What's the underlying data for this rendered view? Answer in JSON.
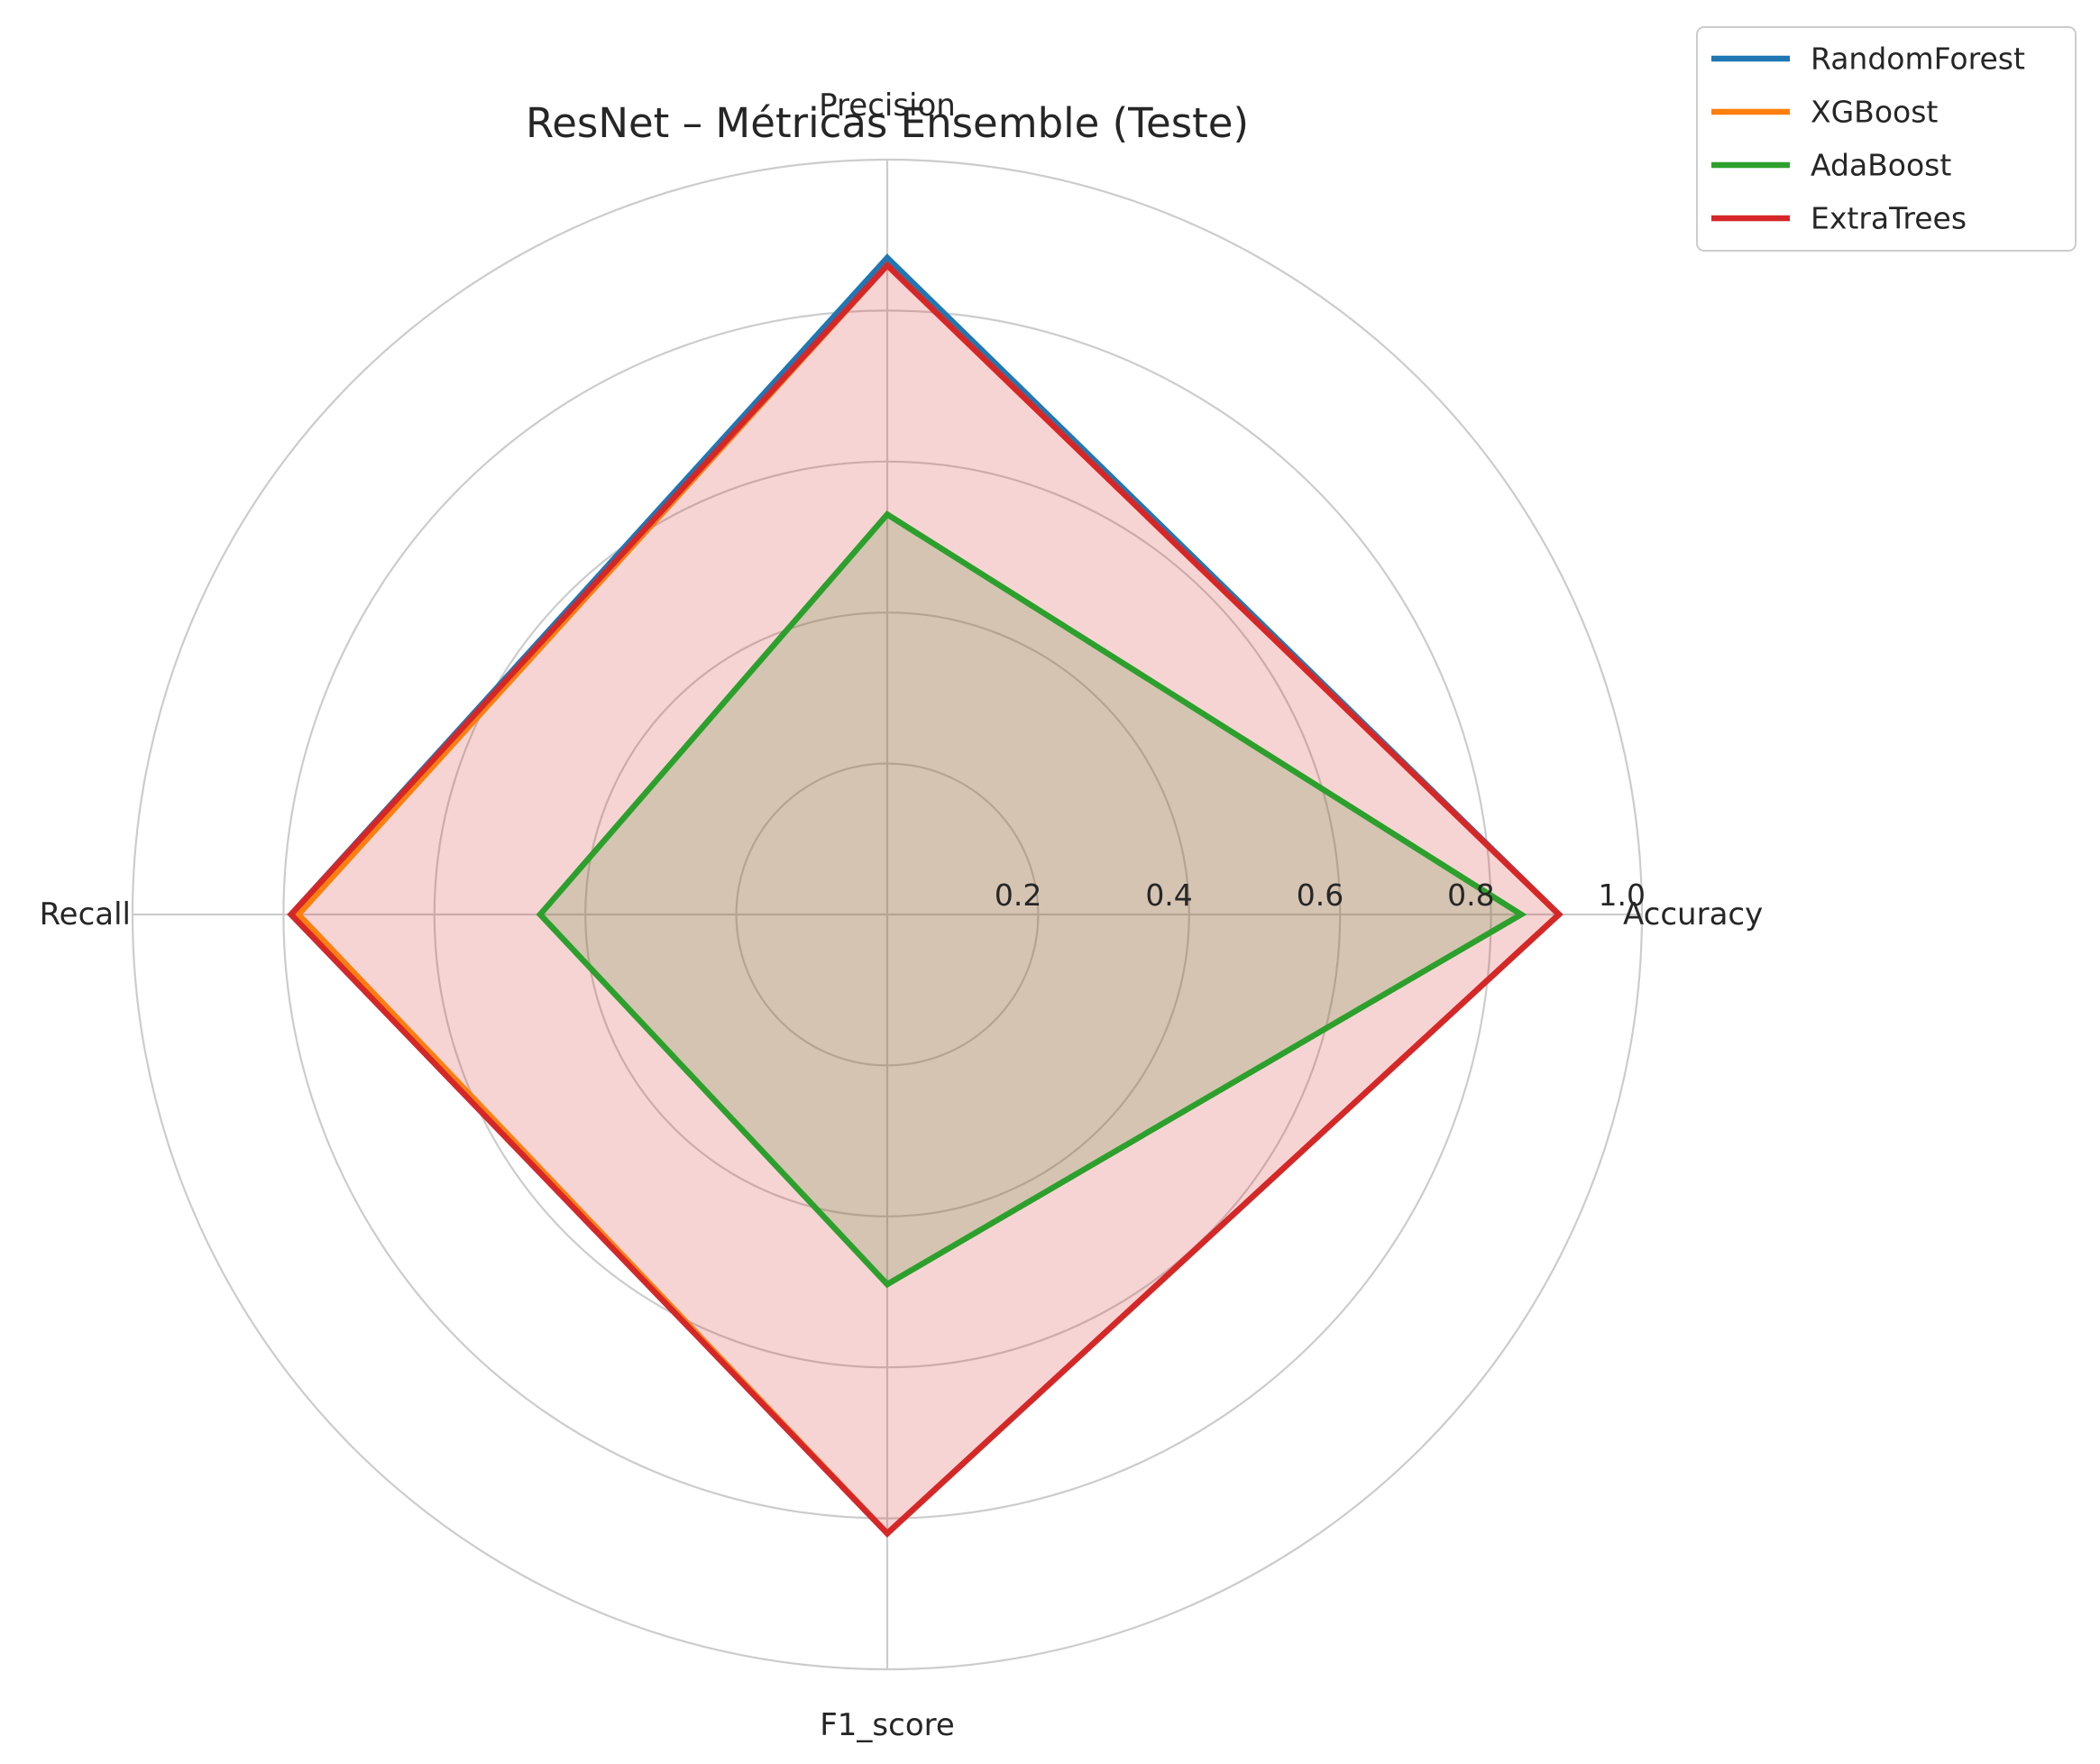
{
  "chart_data": {
    "type": "radar",
    "title": "ResNet – Métricas Ensemble (Teste)",
    "axes": [
      "Accuracy",
      "Precision",
      "Recall",
      "F1_score"
    ],
    "rlim": [
      0,
      1.0
    ],
    "rticks": [
      0.2,
      0.4,
      0.6,
      0.8,
      1.0
    ],
    "rtick_labels": [
      "0.2",
      "0.4",
      "0.6",
      "0.8",
      "1.0"
    ],
    "grid": true,
    "legend_position": "top-right",
    "series": [
      {
        "name": "RandomForest",
        "color": "#1f77b4",
        "values": [
          0.89,
          0.87,
          0.79,
          0.82
        ],
        "fill": false
      },
      {
        "name": "XGBoost",
        "color": "#ff7f0e",
        "values": [
          0.89,
          0.86,
          0.78,
          0.82
        ],
        "fill": false
      },
      {
        "name": "AdaBoost",
        "color": "#2ca02c",
        "values": [
          0.84,
          0.53,
          0.46,
          0.49
        ],
        "fill": true
      },
      {
        "name": "ExtraTrees",
        "color": "#d62728",
        "values": [
          0.89,
          0.86,
          0.79,
          0.82
        ],
        "fill": true
      }
    ]
  }
}
